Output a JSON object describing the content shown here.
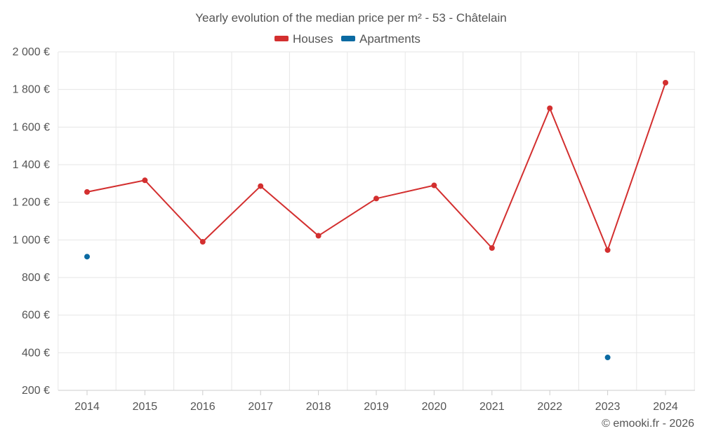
{
  "chart_data": {
    "type": "line",
    "title": "Yearly evolution of the median price per m² - 53 - Châtelain",
    "categories": [
      "2014",
      "2015",
      "2016",
      "2017",
      "2018",
      "2019",
      "2020",
      "2021",
      "2022",
      "2023",
      "2024"
    ],
    "series": [
      {
        "name": "Houses",
        "color": "#d32f2f",
        "values": [
          1255,
          1317,
          990,
          1286,
          1022,
          1220,
          1290,
          957,
          1700,
          946,
          1836
        ]
      },
      {
        "name": "Apartments",
        "color": "#0b6aa2",
        "values": [
          911,
          null,
          null,
          null,
          null,
          null,
          null,
          null,
          null,
          375,
          null
        ]
      }
    ],
    "ylim": [
      200,
      2000
    ],
    "yticks": [
      200,
      400,
      600,
      800,
      1000,
      1200,
      1400,
      1600,
      1800,
      2000
    ],
    "ytick_labels": [
      "200 €",
      "400 €",
      "600 €",
      "800 €",
      "1 000 €",
      "1 200 €",
      "1 400 €",
      "1 600 €",
      "1 800 €",
      "2 000 €"
    ],
    "xlabel": "",
    "ylabel": "",
    "legend": "top-center",
    "grid": true
  },
  "credit": "© emooki.fr - 2026"
}
